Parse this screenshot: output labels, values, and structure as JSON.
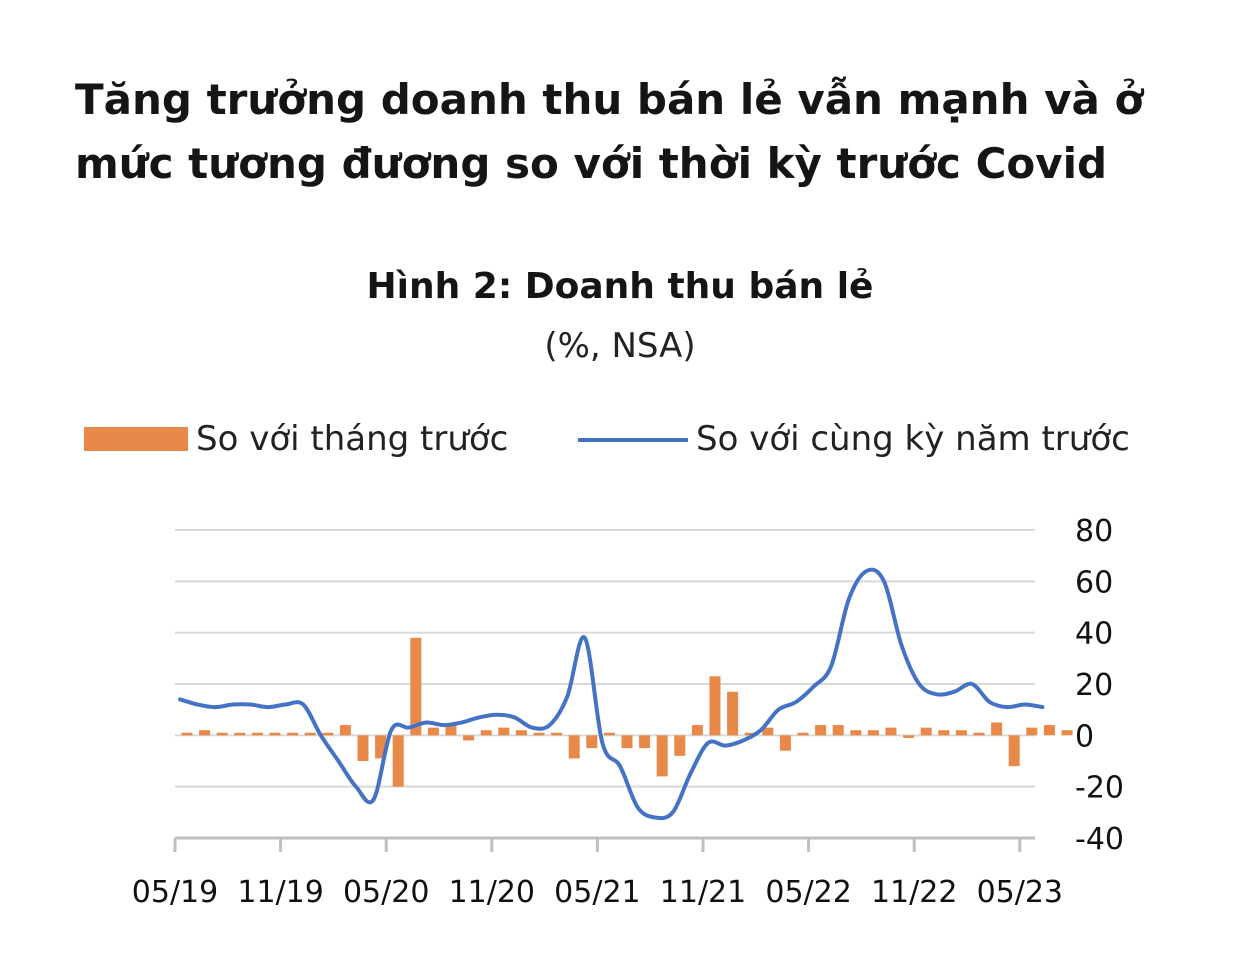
{
  "headline": "Tăng trưởng doanh thu bán lẻ vẫn mạnh và ở mức tương đương so với thời kỳ trước Covid",
  "chart_data": {
    "type": "bar+line",
    "title": "Hình 2: Doanh thu bán lẻ",
    "subtitle": "(%, NSA)",
    "legend_position": "top",
    "grid": true,
    "ylim": [
      -40,
      80
    ],
    "yticks": [
      "80",
      "60",
      "40",
      "20",
      "0",
      "-20",
      "-40"
    ],
    "ytick_values": [
      80,
      60,
      40,
      20,
      0,
      -20,
      -40
    ],
    "xtick_labels": [
      "05/19",
      "11/19",
      "05/20",
      "11/20",
      "05/21",
      "11/21",
      "05/22",
      "11/22",
      "05/23"
    ],
    "months": [
      "05/19",
      "06/19",
      "07/19",
      "08/19",
      "09/19",
      "10/19",
      "11/19",
      "12/19",
      "01/20",
      "02/20",
      "03/20",
      "04/20",
      "05/20",
      "06/20",
      "07/20",
      "08/20",
      "09/20",
      "10/20",
      "11/20",
      "12/20",
      "01/21",
      "02/21",
      "03/21",
      "04/21",
      "05/21",
      "06/21",
      "07/21",
      "08/21",
      "09/21",
      "10/21",
      "11/21",
      "12/21",
      "01/22",
      "02/22",
      "03/22",
      "04/22",
      "05/22",
      "06/22",
      "07/22",
      "08/22",
      "09/22",
      "10/22",
      "11/22",
      "12/22",
      "01/23",
      "02/23",
      "03/23",
      "04/23",
      "05/23",
      "06/23"
    ],
    "series": [
      {
        "name": "So với tháng trước",
        "type": "bar",
        "color": "#E8894A",
        "values": [
          1,
          2,
          1,
          1,
          1,
          1,
          1,
          1,
          1,
          4,
          -10,
          -9,
          -20,
          38,
          3,
          4,
          -2,
          2,
          3,
          2,
          1,
          1,
          -9,
          -5,
          1,
          -5,
          -5,
          -16,
          -8,
          4,
          23,
          17,
          1,
          3,
          -6,
          1,
          4,
          4,
          2,
          2,
          3,
          -1,
          3,
          2,
          2,
          1,
          5,
          -12,
          3,
          4
        ],
        "values_extra": [
          2
        ]
      },
      {
        "name": "So với cùng kỳ năm trước",
        "type": "line",
        "color": "#4472C4",
        "values": [
          14,
          12,
          11,
          12,
          12,
          11,
          12,
          12,
          0,
          -10,
          -20,
          -25,
          2,
          3,
          5,
          4,
          5,
          7,
          8,
          7,
          3,
          4,
          15,
          38,
          -3,
          -12,
          -28,
          -32,
          -30,
          -15,
          -3,
          -4,
          -2,
          2,
          10,
          13,
          19,
          27,
          53,
          64,
          60,
          35,
          20,
          16,
          17,
          20,
          13,
          11,
          12,
          11
        ]
      }
    ]
  }
}
